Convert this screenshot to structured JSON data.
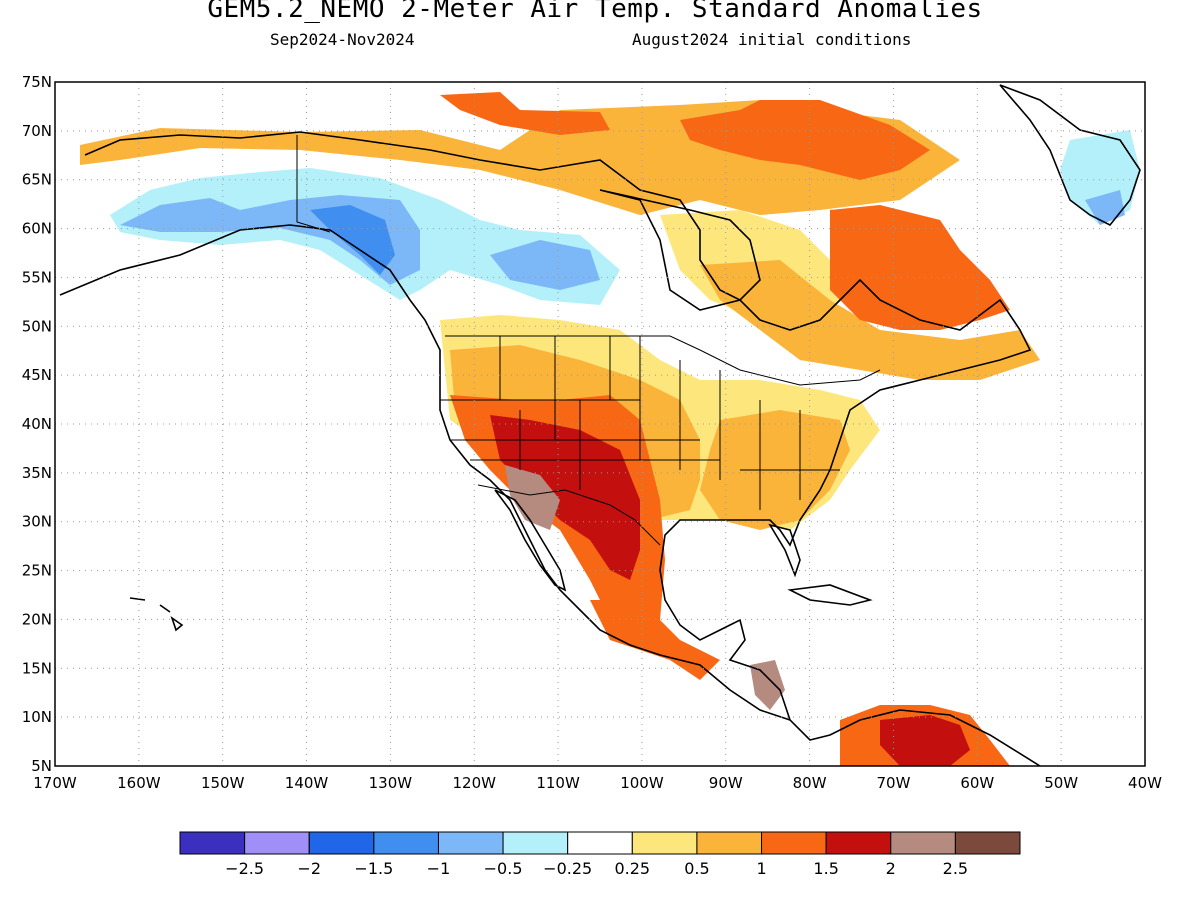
{
  "header": {
    "title": "GEM5.2_NEMO 2-Meter Air Temp. Standard Anomalies",
    "period": "Sep2024-Nov2024",
    "init": "August2024 initial conditions"
  },
  "map": {
    "lon_range": [
      -170,
      -40
    ],
    "lat_range": [
      5,
      75
    ],
    "lat_ticks": [
      "75N",
      "70N",
      "65N",
      "60N",
      "55N",
      "50N",
      "45N",
      "40N",
      "35N",
      "30N",
      "25N",
      "20N",
      "15N",
      "10N",
      "5N"
    ],
    "lon_ticks": [
      "170W",
      "160W",
      "150W",
      "140W",
      "130W",
      "120W",
      "110W",
      "100W",
      "90W",
      "80W",
      "70W",
      "60W",
      "50W",
      "40W"
    ],
    "grid": "dotted"
  },
  "colorbar": {
    "colors": [
      "#3a2fbf",
      "#9f8ff7",
      "#2166e8",
      "#3f8ef0",
      "#7cb8f7",
      "#b4f0f9",
      "#ffffff",
      "#fde77d",
      "#fbb43a",
      "#f86714",
      "#c40f0f",
      "#b58b80",
      "#7b4a3c"
    ],
    "labels": [
      "-2.5",
      "-2",
      "-1.5",
      "-1",
      "-0.5",
      "-0.25",
      "0.25",
      "0.5",
      "1",
      "1.5",
      "2",
      "2.5"
    ]
  }
}
